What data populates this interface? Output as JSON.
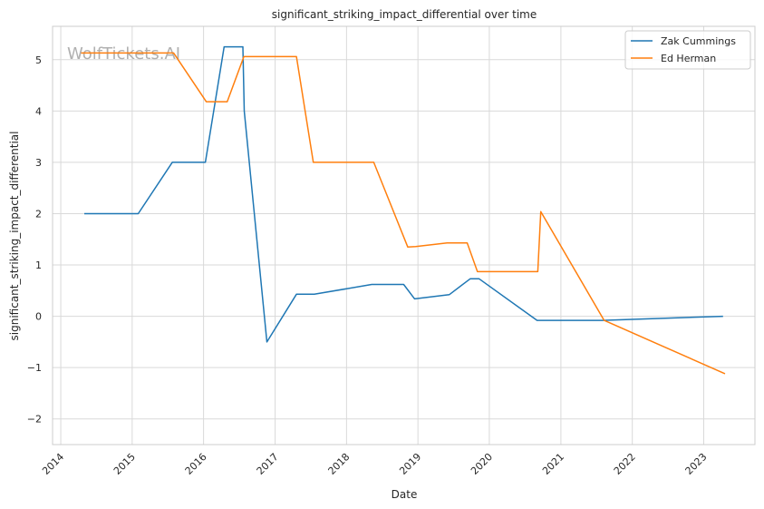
{
  "watermark": "WolfTickets.AI",
  "chart_data": {
    "type": "line",
    "title": "significant_striking_impact_differential over time",
    "xlabel": "Date",
    "ylabel": "significant_striking_impact_differential",
    "x_ticks": [
      "2014",
      "2015",
      "2016",
      "2017",
      "2018",
      "2019",
      "2020",
      "2021",
      "2022",
      "2023"
    ],
    "y_ticks": [
      -2,
      -1,
      0,
      1,
      2,
      3,
      4,
      5
    ],
    "xlim": [
      "2013-11-20",
      "2023-09-20"
    ],
    "ylim": [
      -2.5,
      5.65
    ],
    "grid": true,
    "legend_position": "top-right",
    "colors": {
      "Zak Cummings": "#1f77b4",
      "Ed Herman": "#ff7f0e"
    },
    "series": [
      {
        "name": "Zak Cummings",
        "points": [
          [
            "2014-05-01",
            2.0
          ],
          [
            "2015-02-01",
            2.0
          ],
          [
            "2015-07-25",
            3.0
          ],
          [
            "2016-01-10",
            3.0
          ],
          [
            "2016-04-15",
            5.25
          ],
          [
            "2016-07-20",
            5.25
          ],
          [
            "2016-07-27",
            4.0
          ],
          [
            "2016-11-20",
            -0.5
          ],
          [
            "2017-04-20",
            0.43
          ],
          [
            "2017-07-20",
            0.43
          ],
          [
            "2018-05-10",
            0.62
          ],
          [
            "2018-10-20",
            0.62
          ],
          [
            "2018-12-15",
            0.34
          ],
          [
            "2019-06-10",
            0.42
          ],
          [
            "2019-09-25",
            0.73
          ],
          [
            "2019-11-10",
            0.73
          ],
          [
            "2020-09-01",
            -0.08
          ],
          [
            "2021-08-01",
            -0.08
          ],
          [
            "2023-04-10",
            0.0
          ]
        ]
      },
      {
        "name": "Ed Herman",
        "points": [
          [
            "2014-04-15",
            5.13
          ],
          [
            "2015-08-01",
            5.13
          ],
          [
            "2016-01-15",
            4.18
          ],
          [
            "2016-05-01",
            4.18
          ],
          [
            "2016-07-25",
            5.06
          ],
          [
            "2017-04-20",
            5.06
          ],
          [
            "2017-07-15",
            3.0
          ],
          [
            "2018-05-20",
            3.0
          ],
          [
            "2018-11-10",
            1.35
          ],
          [
            "2018-12-20",
            1.36
          ],
          [
            "2019-05-30",
            1.43
          ],
          [
            "2019-09-10",
            1.43
          ],
          [
            "2019-11-01",
            0.87
          ],
          [
            "2020-09-05",
            0.87
          ],
          [
            "2020-09-20",
            2.04
          ],
          [
            "2021-08-10",
            -0.08
          ],
          [
            "2023-04-20",
            -1.12
          ]
        ]
      }
    ]
  }
}
